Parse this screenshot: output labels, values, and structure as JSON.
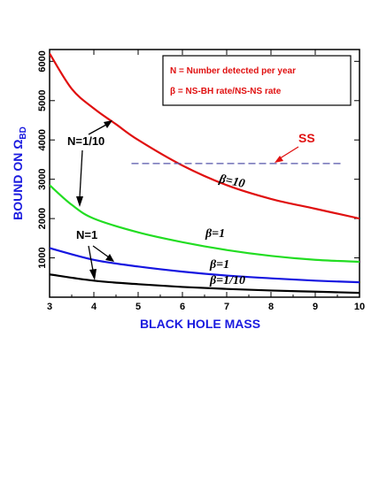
{
  "chart_data": {
    "type": "line",
    "title": "",
    "xlabel": "BLACK HOLE MASS",
    "ylabel_main": "BOUND ON Ω",
    "ylabel_sub": "BD",
    "xlim": [
      3,
      10
    ],
    "ylim": [
      0,
      6300
    ],
    "xticks": [
      3,
      4,
      5,
      6,
      7,
      8,
      9,
      10
    ],
    "yticks": [
      1000,
      2000,
      3000,
      4000,
      5000,
      6000
    ],
    "grid": false,
    "legend": {
      "placement": "top-right",
      "lines": [
        "N = Number detected per year",
        "β = NS-BH rate/NS-NS rate"
      ]
    },
    "series": [
      {
        "color": "#e01010",
        "x": [
          3,
          3.5,
          4,
          4.5,
          5,
          6,
          7,
          8,
          9,
          10
        ],
        "y": [
          6200,
          5300,
          4800,
          4400,
          4000,
          3350,
          2850,
          2500,
          2250,
          2000
        ]
      },
      {
        "color": "#22dd22",
        "x": [
          3,
          3.5,
          4,
          5,
          6,
          7,
          8,
          9,
          10
        ],
        "y": [
          2850,
          2350,
          2000,
          1650,
          1400,
          1200,
          1050,
          950,
          900
        ]
      },
      {
        "color": "#1515e0",
        "x": [
          3,
          4,
          5,
          6,
          7,
          8,
          9,
          10
        ],
        "y": [
          1250,
          950,
          780,
          650,
          550,
          480,
          420,
          380
        ]
      },
      {
        "color": "#000000",
        "x": [
          3,
          4,
          5,
          6,
          7,
          8,
          9,
          10
        ],
        "y": [
          580,
          420,
          330,
          260,
          210,
          170,
          140,
          110
        ]
      }
    ],
    "ss_line": {
      "label": "SS",
      "x_start": 4.85,
      "x_end": 9.65,
      "y": 3400,
      "color": "#5555aa"
    },
    "annotations": {
      "n_tenth": "N=1/10",
      "n_one": "N=1",
      "beta_ten": "β=10",
      "beta_one_green": "β=1",
      "beta_one_blue": "β=1",
      "beta_tenth": "β=1/10"
    }
  }
}
